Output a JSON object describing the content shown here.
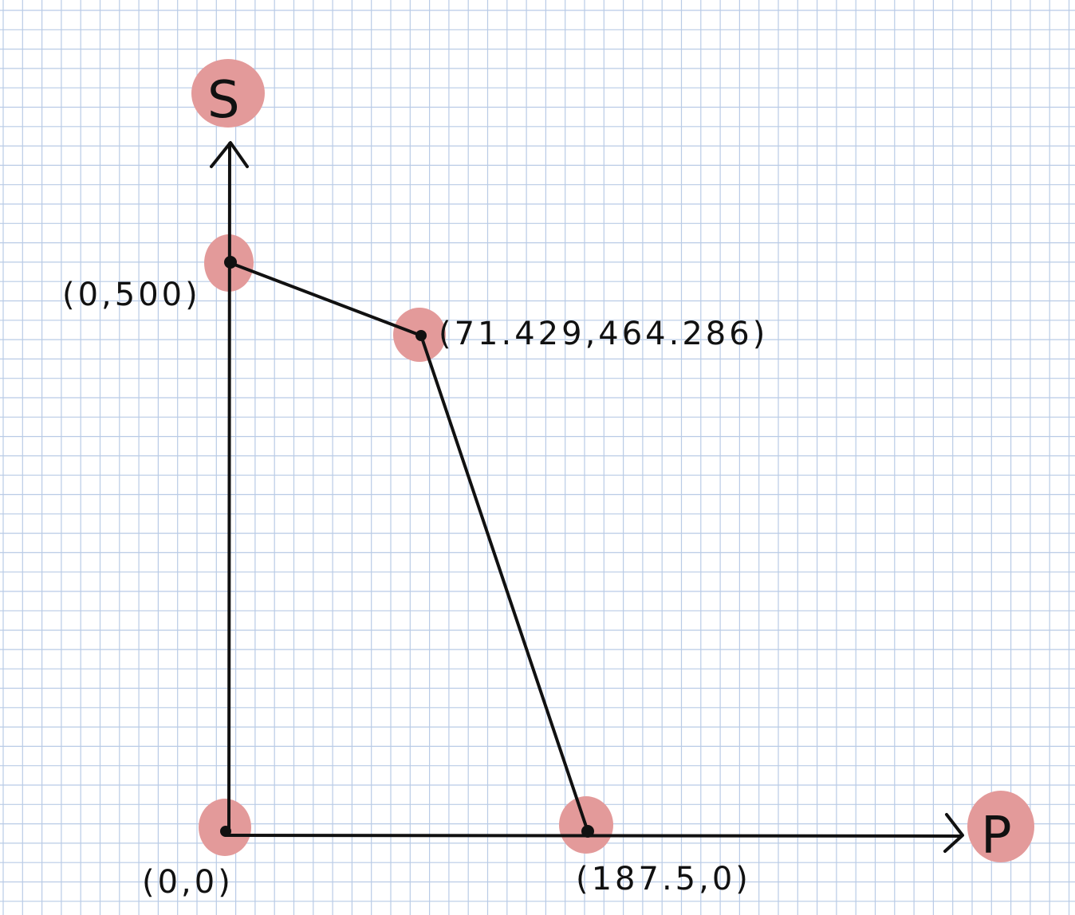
{
  "axes": {
    "x_label": "P",
    "y_label": "S"
  },
  "points": [
    {
      "id": "origin",
      "label": "(0,0)",
      "p": 0,
      "s": 0
    },
    {
      "id": "s-intercept",
      "label": "(0,500)",
      "p": 0,
      "s": 500
    },
    {
      "id": "corner",
      "label": "(71.429,464.286)",
      "p": 71.429,
      "s": 464.286
    },
    {
      "id": "p-intercept",
      "label": "(187.5,0)",
      "p": 187.5,
      "s": 0
    }
  ],
  "colors": {
    "highlight": "#e39a9a",
    "grid": "#b9cbe6",
    "ink": "#111111"
  }
}
